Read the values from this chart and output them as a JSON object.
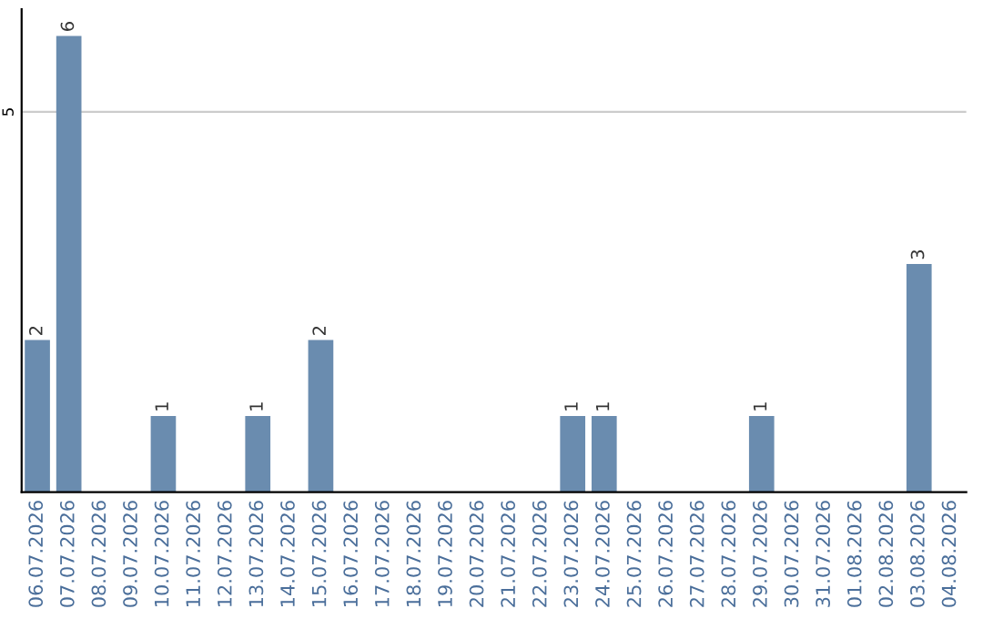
{
  "chart_data": {
    "type": "bar",
    "categories": [
      "06.07.2026",
      "07.07.2026",
      "08.07.2026",
      "09.07.2026",
      "10.07.2026",
      "11.07.2026",
      "12.07.2026",
      "13.07.2026",
      "14.07.2026",
      "15.07.2026",
      "16.07.2026",
      "17.07.2026",
      "18.07.2026",
      "19.07.2026",
      "20.07.2026",
      "21.07.2026",
      "22.07.2026",
      "23.07.2026",
      "24.07.2026",
      "25.07.2026",
      "26.07.2026",
      "27.07.2026",
      "28.07.2026",
      "29.07.2026",
      "30.07.2026",
      "31.07.2026",
      "01.08.2026",
      "02.08.2026",
      "03.08.2026",
      "04.08.2026"
    ],
    "values": [
      2,
      6,
      0,
      0,
      1,
      0,
      0,
      1,
      0,
      2,
      0,
      0,
      0,
      0,
      0,
      0,
      0,
      1,
      1,
      0,
      0,
      0,
      0,
      1,
      0,
      0,
      0,
      0,
      3,
      0
    ],
    "color": "#6a8caf",
    "value_labels": [
      "2",
      "6",
      null,
      null,
      "1",
      null,
      null,
      "1",
      null,
      "2",
      null,
      null,
      null,
      null,
      null,
      null,
      null,
      "1",
      "1",
      null,
      null,
      null,
      null,
      "1",
      null,
      null,
      null,
      null,
      "3",
      null
    ],
    "ylim": [
      0,
      6.35
    ],
    "yticks": [
      5
    ],
    "grid": "y"
  }
}
